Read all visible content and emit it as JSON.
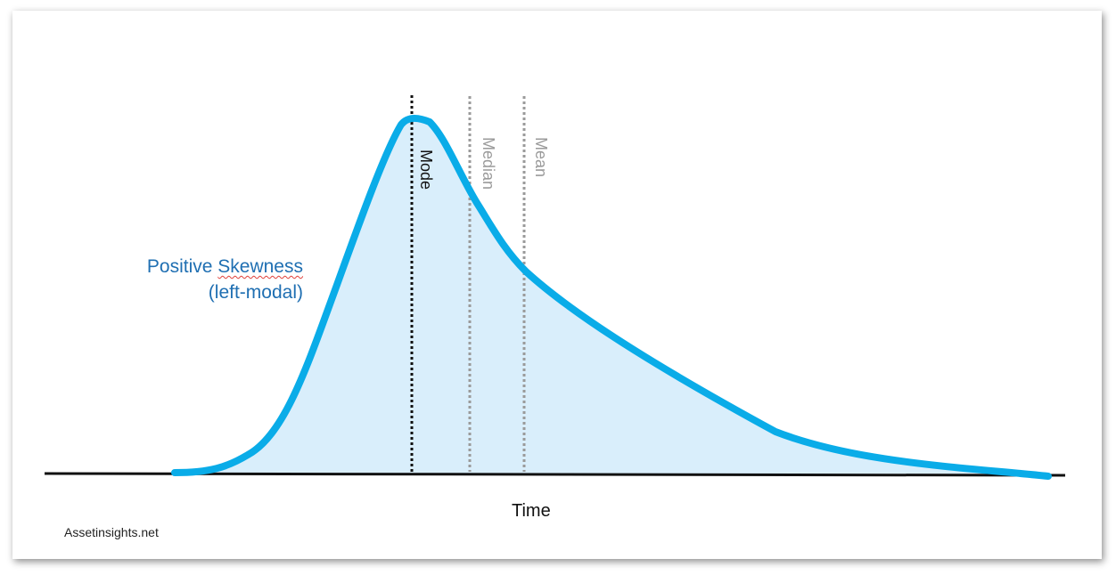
{
  "title": {
    "main_prefix": "Positive ",
    "main_underlined": "Skewness",
    "sub": "(left-modal)"
  },
  "markers": {
    "mode": "Mode",
    "median": "Median",
    "mean": "Mean"
  },
  "axis": {
    "x_label": "Time"
  },
  "credit": "Assetinsights.net",
  "colors": {
    "curve": "#0aace8",
    "fill": "#d9eefb",
    "title": "#1f6fb2",
    "axis": "#111111",
    "mode_line": "#111111",
    "median_mean_line": "#9a9a9a",
    "spellcheck_underline": "#e0403a"
  }
}
